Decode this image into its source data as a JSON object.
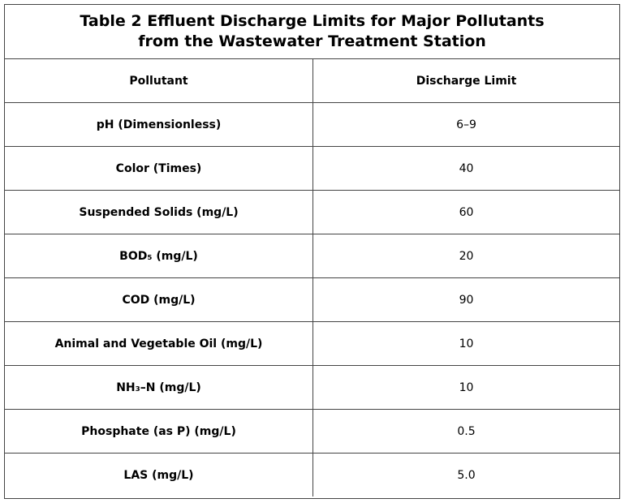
{
  "table": {
    "title": [
      "Table 2 Effluent Discharge Limits for Major Pollutants",
      "from the Wastewater Treatment Station"
    ],
    "header": [
      "Pollutant",
      "Discharge Limit"
    ],
    "rows": [
      [
        "pH (Dimensionless)",
        "6–9"
      ],
      [
        "Color (Times)",
        "40"
      ],
      [
        "Suspended Solids (mg/L)",
        "60"
      ],
      [
        "BOD₅ (mg/L)",
        "20"
      ],
      [
        "COD (mg/L)",
        "90"
      ],
      [
        "Animal and Vegetable Oil (mg/L)",
        "10"
      ],
      [
        "NH₃–N (mg/L)",
        "10"
      ],
      [
        "Phosphate (as P) (mg/L)",
        "0.5"
      ],
      [
        "LAS (mg/L)",
        "5.0"
      ]
    ]
  }
}
